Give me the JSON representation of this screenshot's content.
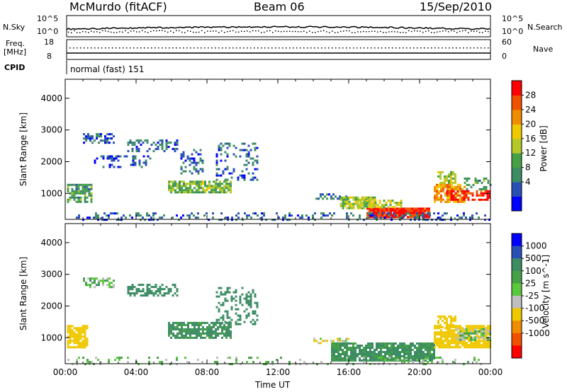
{
  "header": {
    "station": "McMurdo (fitACF)",
    "beam": "Beam 06",
    "date": "15/Sep/2010"
  },
  "status_panel": {
    "nsky_label": "N.Sky",
    "nsky_ticks": [
      "10^5",
      "10^0"
    ],
    "nsearch_label": "N.Search",
    "nsearch_ticks": [
      "10^5",
      "10^0"
    ],
    "freq_label_line1": "Freq.",
    "freq_label_line2": "[MHz]",
    "freq_ticks": [
      "18",
      "8"
    ],
    "nave_label": "Nave",
    "nave_ticks": [
      "60",
      "0"
    ],
    "cpid_label": "CPID",
    "cpid_value": "normal (fast) 151"
  },
  "colors": {
    "power_scale": [
      "#0000ff",
      "#2850b4",
      "#3c8c64",
      "#46a046",
      "#b4c828",
      "#f0c800",
      "#f08c00",
      "#f05000",
      "#ff0000"
    ],
    "velocity_scale": [
      "#0000ff",
      "#2850b4",
      "#3c8c64",
      "#46a046",
      "#5ac83c",
      "#bebebe",
      "#f0c800",
      "#f08c00",
      "#f05000",
      "#ff0000"
    ]
  },
  "chart_data": [
    {
      "type": "heatmap",
      "title": "Power",
      "xlabel": "",
      "ylabel": "Slant Range [km]",
      "xlim": [
        "00:00",
        "24:00"
      ],
      "ylim": [
        180,
        4600
      ],
      "x_ticks": [
        "00:00",
        "04:00",
        "08:00",
        "12:00",
        "16:00",
        "20:00",
        "00:00"
      ],
      "y_ticks": [
        1000,
        2000,
        3000,
        4000
      ],
      "colorbar": {
        "label": "Power [dB]",
        "ticks": [
          "28",
          "24",
          "20",
          "16",
          "12",
          "8",
          "4"
        ],
        "range": [
          0,
          30
        ]
      },
      "regions": [
        {
          "t0": 0.1,
          "t1": 1.5,
          "r0": 700,
          "r1": 1300,
          "density": 0.7,
          "value": 10
        },
        {
          "t0": 1.0,
          "t1": 2.8,
          "r0": 2600,
          "r1": 2900,
          "density": 0.6,
          "value": 6
        },
        {
          "t0": 1.5,
          "t1": 4.8,
          "r0": 1800,
          "r1": 2200,
          "density": 0.3,
          "value": 5
        },
        {
          "t0": 3.5,
          "t1": 6.3,
          "r0": 2300,
          "r1": 2700,
          "density": 0.45,
          "value": 6
        },
        {
          "t0": 5.8,
          "t1": 9.3,
          "r0": 1000,
          "r1": 1400,
          "density": 0.8,
          "value": 13
        },
        {
          "t0": 6.5,
          "t1": 7.8,
          "r0": 1600,
          "r1": 2400,
          "density": 0.3,
          "value": 6
        },
        {
          "t0": 8.5,
          "t1": 10.8,
          "r0": 1400,
          "r1": 2600,
          "density": 0.25,
          "value": 6
        },
        {
          "t0": 14.0,
          "t1": 16.0,
          "r0": 800,
          "r1": 1000,
          "density": 0.5,
          "value": 7
        },
        {
          "t0": 15.5,
          "t1": 17.5,
          "r0": 500,
          "r1": 900,
          "density": 0.8,
          "value": 14
        },
        {
          "t0": 17.0,
          "t1": 20.5,
          "r0": 250,
          "r1": 550,
          "density": 0.95,
          "value": 27
        },
        {
          "t0": 16.5,
          "t1": 19.0,
          "r0": 550,
          "r1": 800,
          "density": 0.7,
          "value": 16
        },
        {
          "t0": 20.8,
          "t1": 22.5,
          "r0": 700,
          "r1": 1300,
          "density": 0.8,
          "value": 20
        },
        {
          "t0": 21.5,
          "t1": 24.0,
          "r0": 800,
          "r1": 1100,
          "density": 0.7,
          "value": 27
        },
        {
          "t0": 21.0,
          "t1": 22.0,
          "r0": 1300,
          "r1": 1700,
          "density": 0.6,
          "value": 14
        },
        {
          "t0": 22.5,
          "t1": 24.0,
          "r0": 1100,
          "r1": 1500,
          "density": 0.4,
          "value": 10
        },
        {
          "t0": 0.0,
          "t1": 24.0,
          "r0": 180,
          "r1": 400,
          "density": 0.25,
          "value": 6
        }
      ]
    },
    {
      "type": "heatmap",
      "title": "Velocity",
      "xlabel": "Time UT",
      "ylabel": "Slant Range [km]",
      "xlim": [
        "00:00",
        "24:00"
      ],
      "ylim": [
        180,
        4600
      ],
      "x_ticks": [
        "00:00",
        "04:00",
        "08:00",
        "12:00",
        "16:00",
        "20:00",
        "00:00"
      ],
      "y_ticks": [
        1000,
        2000,
        3000,
        4000
      ],
      "colorbar": {
        "label": "Velocity [m s^-1]",
        "ticks": [
          "1000",
          "500",
          "100",
          "25",
          "-25",
          "-100",
          "-500",
          "-1000"
        ]
      },
      "regions": [
        {
          "t0": 0.1,
          "t1": 1.3,
          "r0": 700,
          "r1": 1400,
          "density": 0.75,
          "value": -300
        },
        {
          "t0": 1.0,
          "t1": 2.8,
          "r0": 2600,
          "r1": 2900,
          "density": 0.5,
          "value": 20
        },
        {
          "t0": 3.5,
          "t1": 6.3,
          "r0": 2300,
          "r1": 2700,
          "density": 0.5,
          "value": 400
        },
        {
          "t0": 5.8,
          "t1": 9.3,
          "r0": 1000,
          "r1": 1500,
          "density": 0.8,
          "value": 150
        },
        {
          "t0": 8.5,
          "t1": 10.8,
          "r0": 1400,
          "r1": 2600,
          "density": 0.3,
          "value": 200
        },
        {
          "t0": 14.0,
          "t1": 16.0,
          "r0": 800,
          "r1": 1000,
          "density": 0.4,
          "value": -100
        },
        {
          "t0": 15.0,
          "t1": 20.8,
          "r0": 250,
          "r1": 850,
          "density": 0.85,
          "value": 150
        },
        {
          "t0": 20.8,
          "t1": 24.0,
          "r0": 700,
          "r1": 1400,
          "density": 0.8,
          "value": -300
        },
        {
          "t0": 22.0,
          "t1": 24.0,
          "r0": 900,
          "r1": 1300,
          "density": 0.6,
          "value": 0
        },
        {
          "t0": 21.0,
          "t1": 22.0,
          "r0": 1300,
          "r1": 1700,
          "density": 0.6,
          "value": -200
        },
        {
          "t0": 0.0,
          "t1": 24.0,
          "r0": 180,
          "r1": 400,
          "density": 0.2,
          "value": 0
        }
      ]
    }
  ]
}
